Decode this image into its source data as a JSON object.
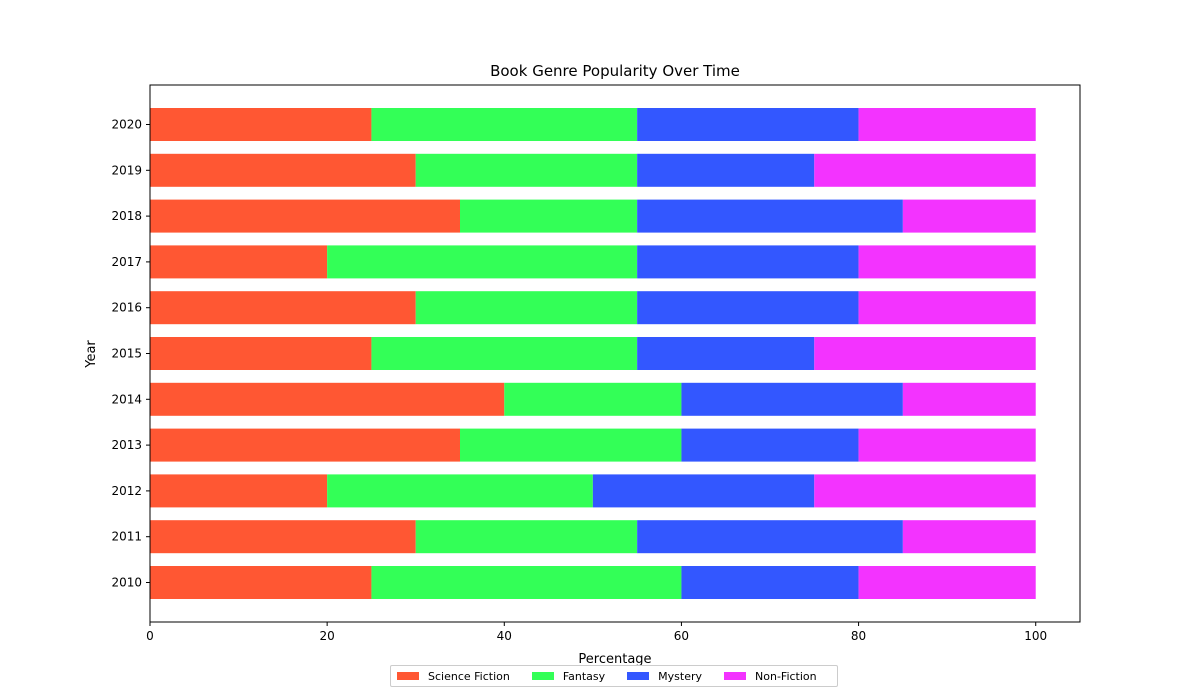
{
  "chart_data": {
    "type": "bar",
    "orientation": "horizontal",
    "stacked": true,
    "title": "Book Genre Popularity Over Time",
    "xlabel": "Percentage",
    "ylabel": "Year",
    "categories": [
      "2010",
      "2011",
      "2012",
      "2013",
      "2014",
      "2015",
      "2016",
      "2017",
      "2018",
      "2019",
      "2020"
    ],
    "xlim": [
      0,
      105
    ],
    "xticks": [
      0,
      20,
      40,
      60,
      80,
      100
    ],
    "grid": false,
    "legend_position": "bottom-center",
    "series": [
      {
        "name": "Science Fiction",
        "color": "#FF5733",
        "values": [
          25,
          30,
          20,
          35,
          40,
          25,
          30,
          20,
          35,
          30,
          25
        ]
      },
      {
        "name": "Fantasy",
        "color": "#33FF57",
        "values": [
          35,
          25,
          30,
          25,
          20,
          30,
          25,
          35,
          20,
          25,
          30
        ]
      },
      {
        "name": "Mystery",
        "color": "#3357FF",
        "values": [
          20,
          30,
          25,
          20,
          25,
          20,
          25,
          25,
          30,
          20,
          25
        ]
      },
      {
        "name": "Non-Fiction",
        "color": "#F333FF",
        "values": [
          20,
          15,
          25,
          20,
          15,
          25,
          20,
          20,
          15,
          25,
          20
        ]
      }
    ]
  }
}
